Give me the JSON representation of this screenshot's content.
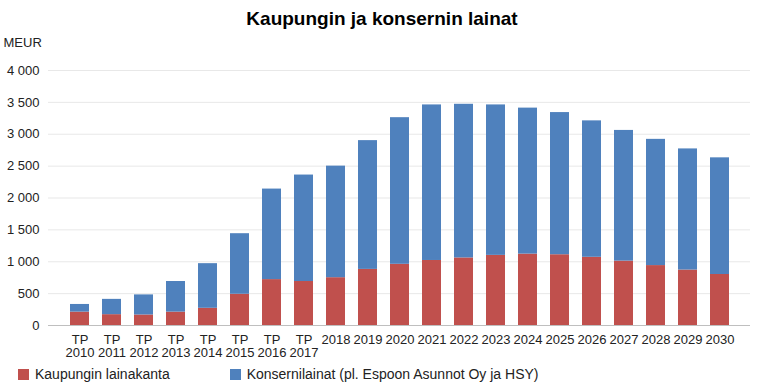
{
  "chart_data": {
    "type": "bar",
    "title": "Kaupungin ja konsernin lainat",
    "y_label": "MEUR",
    "stacked": true,
    "grid": true,
    "legend": "bottom",
    "categories": [
      "TP\n2010",
      "TP\n2011",
      "TP\n2012",
      "TP\n2013",
      "TP\n2014",
      "TP\n2015",
      "TP\n2016",
      "TP\n2017",
      "2018",
      "2019",
      "2020",
      "2021",
      "2022",
      "2023",
      "2024",
      "2025",
      "2026",
      "2027",
      "2028",
      "2029",
      "2030"
    ],
    "series": [
      {
        "name": "Kaupungin lainakanta",
        "color": "#c0504d",
        "values": [
          210,
          170,
          165,
          210,
          270,
          490,
          720,
          690,
          750,
          880,
          960,
          1020,
          1060,
          1100,
          1120,
          1110,
          1070,
          1010,
          940,
          870,
          800
        ]
      },
      {
        "name": "Konsernilainat (pl. Espoon Asunnot Oy ja HSY)",
        "color": "#4f81bd",
        "values": [
          120,
          240,
          315,
          480,
          700,
          950,
          1420,
          1670,
          1750,
          2020,
          2300,
          2440,
          2410,
          2360,
          2290,
          2230,
          2140,
          2050,
          1980,
          1900,
          1830
        ]
      }
    ],
    "ylim": [
      0,
      4000
    ],
    "yticks": [
      0,
      500,
      {
        "value": 1000,
        "label": "1 000"
      },
      {
        "value": 1500,
        "label": "1 500"
      },
      {
        "value": 2000,
        "label": "2 000"
      },
      {
        "value": 2500,
        "label": "2 500"
      },
      {
        "value": 3000,
        "label": "3 000"
      },
      {
        "value": 3500,
        "label": "3 500"
      },
      {
        "value": 4000,
        "label": "4 000"
      }
    ]
  }
}
